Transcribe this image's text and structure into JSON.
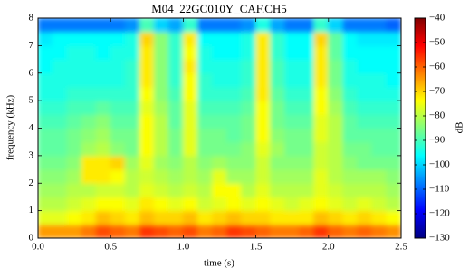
{
  "chart_data": {
    "type": "spectrogram",
    "title": "M04_22GC010Y_CAF.CH5",
    "x_label": "time (s)",
    "y_label": "frequency (kHz)",
    "colorbar_label": "dB",
    "colormap": "jet",
    "xbins": [
      0,
      0.1,
      0.2,
      0.3,
      0.4,
      0.5,
      0.6,
      0.7,
      0.8,
      0.9,
      1.0,
      1.1,
      1.2,
      1.3,
      1.4,
      1.5,
      1.6,
      1.7,
      1.8,
      1.9,
      2.0,
      2.1,
      2.2,
      2.3,
      2.4,
      2.5
    ],
    "ybins": [
      0,
      0.5,
      1,
      1.5,
      2,
      2.5,
      3,
      3.5,
      4,
      4.5,
      5,
      5.5,
      6,
      6.5,
      7,
      7.5,
      8
    ],
    "values": [
      [
        -65,
        -65,
        -65,
        -62,
        -58,
        -60,
        -62,
        -56,
        -58,
        -60,
        -58,
        -62,
        -60,
        -56,
        -58,
        -60,
        -62,
        -62,
        -60,
        -56,
        -60,
        -62,
        -60,
        -62,
        -64
      ],
      [
        -76,
        -76,
        -74,
        -72,
        -68,
        -70,
        -72,
        -68,
        -70,
        -70,
        -68,
        -72,
        -70,
        -68,
        -70,
        -70,
        -72,
        -72,
        -72,
        -68,
        -70,
        -72,
        -70,
        -72,
        -74
      ],
      [
        -80,
        -80,
        -78,
        -76,
        -74,
        -74,
        -76,
        -72,
        -74,
        -76,
        -74,
        -78,
        -76,
        -74,
        -76,
        -74,
        -76,
        -78,
        -76,
        -74,
        -76,
        -78,
        -76,
        -78,
        -80
      ],
      [
        -82,
        -82,
        -80,
        -80,
        -78,
        -78,
        -80,
        -76,
        -78,
        -80,
        -78,
        -80,
        -74,
        -74,
        -80,
        -76,
        -80,
        -80,
        -80,
        -76,
        -78,
        -80,
        -80,
        -80,
        -82
      ],
      [
        -84,
        -84,
        -82,
        -72,
        -72,
        -74,
        -80,
        -78,
        -80,
        -82,
        -80,
        -82,
        -76,
        -82,
        -82,
        -78,
        -82,
        -82,
        -82,
        -76,
        -80,
        -82,
        -82,
        -82,
        -84
      ],
      [
        -86,
        -86,
        -84,
        -72,
        -72,
        -70,
        -82,
        -76,
        -82,
        -84,
        -80,
        -84,
        -82,
        -84,
        -84,
        -78,
        -84,
        -84,
        -84,
        -78,
        -80,
        -84,
        -86,
        -86,
        -86
      ],
      [
        -88,
        -88,
        -86,
        -82,
        -80,
        -84,
        -86,
        -74,
        -80,
        -86,
        -76,
        -86,
        -86,
        -86,
        -84,
        -76,
        -82,
        -86,
        -86,
        -78,
        -80,
        -86,
        -86,
        -88,
        -88
      ],
      [
        -88,
        -88,
        -86,
        -84,
        -82,
        -86,
        -86,
        -74,
        -80,
        -86,
        -76,
        -86,
        -86,
        -88,
        -86,
        -74,
        -84,
        -86,
        -86,
        -76,
        -80,
        -88,
        -88,
        -88,
        -88
      ],
      [
        -90,
        -90,
        -88,
        -86,
        -84,
        -88,
        -88,
        -74,
        -80,
        -88,
        -76,
        -88,
        -88,
        -88,
        -86,
        -74,
        -86,
        -88,
        -88,
        -76,
        -80,
        -88,
        -90,
        -90,
        -90
      ],
      [
        -92,
        -92,
        -90,
        -90,
        -88,
        -90,
        -90,
        -76,
        -82,
        -88,
        -76,
        -90,
        -90,
        -90,
        -88,
        -74,
        -86,
        -90,
        -90,
        -74,
        -82,
        -90,
        -92,
        -92,
        -92
      ],
      [
        -94,
        -94,
        -92,
        -92,
        -92,
        -92,
        -92,
        -74,
        -84,
        -90,
        -74,
        -92,
        -92,
        -92,
        -90,
        -72,
        -88,
        -92,
        -92,
        -74,
        -84,
        -92,
        -94,
        -94,
        -94
      ],
      [
        -94,
        -94,
        -94,
        -94,
        -94,
        -94,
        -92,
        -72,
        -84,
        -92,
        -74,
        -92,
        -94,
        -94,
        -92,
        -72,
        -90,
        -94,
        -94,
        -72,
        -86,
        -94,
        -94,
        -94,
        -96
      ],
      [
        -96,
        -94,
        -94,
        -94,
        -94,
        -94,
        -92,
        -72,
        -84,
        -92,
        -72,
        -94,
        -94,
        -94,
        -92,
        -72,
        -90,
        -94,
        -94,
        -72,
        -86,
        -94,
        -96,
        -96,
        -96
      ],
      [
        -96,
        -96,
        -94,
        -94,
        -96,
        -94,
        -94,
        -72,
        -84,
        -92,
        -74,
        -94,
        -96,
        -96,
        -94,
        -72,
        -92,
        -96,
        -96,
        -72,
        -88,
        -96,
        -96,
        -96,
        -96
      ],
      [
        -98,
        -96,
        -96,
        -96,
        -96,
        -96,
        -94,
        -70,
        -84,
        -92,
        -72,
        -96,
        -96,
        -96,
        -94,
        -72,
        -92,
        -96,
        -96,
        -70,
        -88,
        -96,
        -98,
        -98,
        -98
      ],
      [
        -108,
        -108,
        -108,
        -108,
        -108,
        -108,
        -106,
        -90,
        -100,
        -104,
        -92,
        -108,
        -108,
        -108,
        -106,
        -94,
        -104,
        -108,
        -108,
        -92,
        -100,
        -108,
        -108,
        -108,
        -110
      ]
    ],
    "xlim": [
      0,
      2.5
    ],
    "xticks": [
      {
        "value": 0,
        "label": "0.0"
      },
      {
        "value": 0.5,
        "label": "0.5"
      },
      {
        "value": 1,
        "label": "1.0"
      },
      {
        "value": 1.5,
        "label": "1.5"
      },
      {
        "value": 2,
        "label": "2.0"
      },
      {
        "value": 2.5,
        "label": "2.5"
      }
    ],
    "ylim": [
      0,
      8
    ],
    "yticks": [
      0,
      1,
      2,
      3,
      4,
      5,
      6,
      7,
      8
    ],
    "clim": [
      -130,
      -40
    ],
    "cticks": [
      {
        "value": -40,
        "label": "−40"
      },
      {
        "value": -50,
        "label": "−50"
      },
      {
        "value": -60,
        "label": "−60"
      },
      {
        "value": -70,
        "label": "−70"
      },
      {
        "value": -80,
        "label": "−80"
      },
      {
        "value": -90,
        "label": "−90"
      },
      {
        "value": -100,
        "label": "−100"
      },
      {
        "value": -110,
        "label": "−110"
      },
      {
        "value": -120,
        "label": "−120"
      },
      {
        "value": -130,
        "label": "−130"
      }
    ]
  }
}
